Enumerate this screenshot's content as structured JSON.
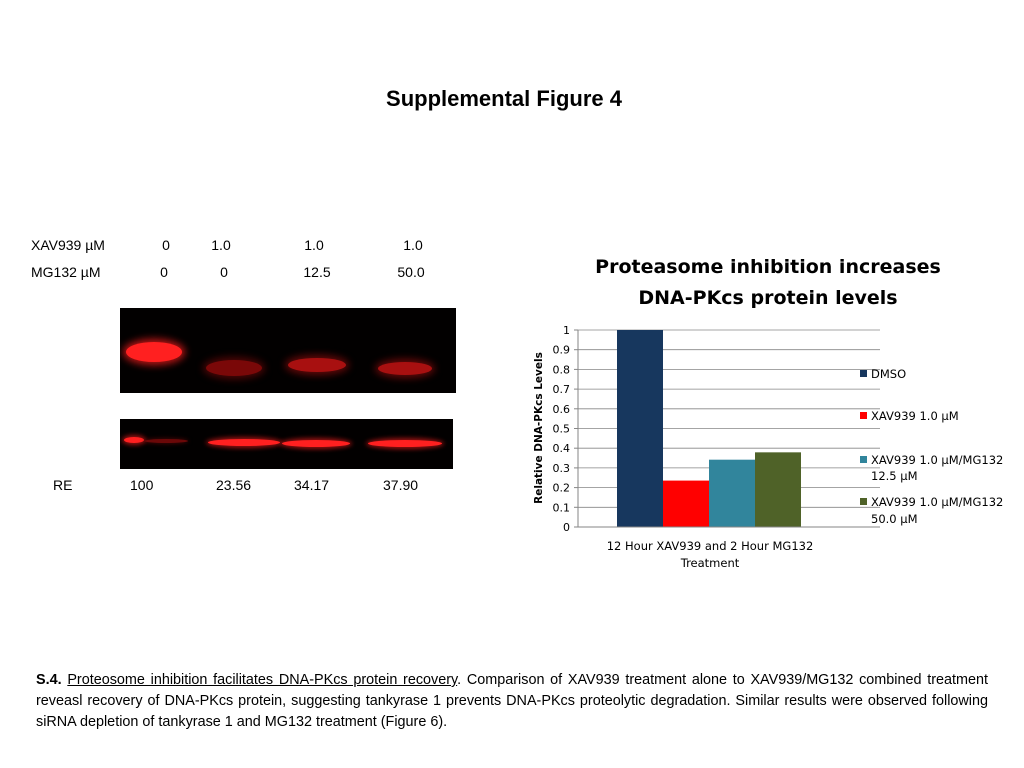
{
  "title": "Supplemental Figure 4",
  "conditions": {
    "xav_label": "XAV939 µM",
    "mg_label": "MG132 µM",
    "xav_values": [
      "0",
      "1.0",
      "1.0",
      "1.0"
    ],
    "mg_values": [
      "0",
      "0",
      "12.5",
      "50.0"
    ]
  },
  "re": {
    "label": "RE",
    "values": [
      "100",
      "23.56",
      "34.17",
      "37.90"
    ]
  },
  "chart_data": {
    "type": "bar",
    "title_line1": "Proteasome inhibition increases",
    "title_line2": "DNA-PKcs protein levels",
    "ylabel": "Relative DNA-PKcs Levels",
    "xlabel_line1": "12 Hour XAV939 and 2 Hour MG132",
    "xlabel_line2": "Treatment",
    "ylim": [
      0,
      1
    ],
    "yticks": [
      "0",
      "0.1",
      "0.2",
      "0.3",
      "0.4",
      "0.5",
      "0.6",
      "0.7",
      "0.8",
      "0.9",
      "1"
    ],
    "grid": true,
    "legend_position": "right",
    "series": [
      {
        "name": "DMSO",
        "value": 1.0,
        "color": "#17375e"
      },
      {
        "name_line1": "XAV939 1.0 µM",
        "name_line2": "",
        "value": 0.2356,
        "color": "#ff0000"
      },
      {
        "name_line1": "XAV939 1.0 µM/MG132",
        "name_line2": "12.5 µM",
        "value": 0.3417,
        "color": "#31859c"
      },
      {
        "name_line1": "XAV939 1.0 µM/MG132",
        "name_line2": "50.0 µM",
        "value": 0.379,
        "color": "#4f6228"
      }
    ]
  },
  "caption": {
    "label": "S.4.",
    "title": "Proteosome inhibition facilitates DNA-PKcs protein recovery",
    "text": ".  Comparison of XAV939 treatment alone to XAV939/MG132 combined treatment reveasl recovery of DNA-PKcs protein, suggesting tankyrase 1 prevents DNA-PKcs proteolytic degradation. Similar results were observed following siRNA depletion of tankyrase 1 and MG132 treatment (Figure 6)."
  }
}
